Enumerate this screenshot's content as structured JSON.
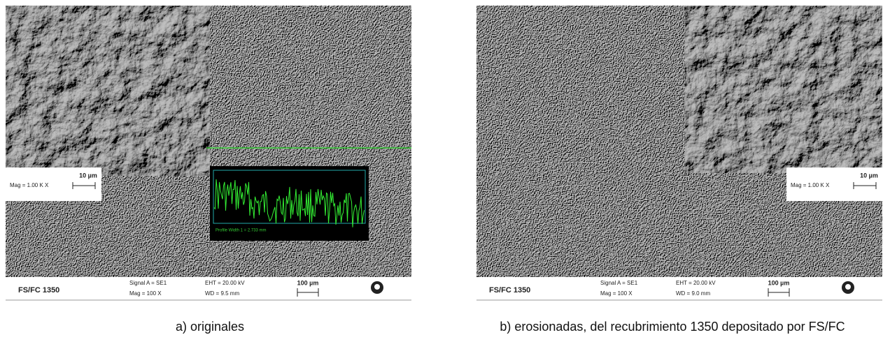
{
  "panels": [
    {
      "image": {
        "inset": {
          "scale": "10 µm",
          "mag": "Mag = 1.00 K X"
        },
        "profile_label": "Profile Width 1 = 2.733 mm",
        "info_bar": {
          "sample": "FS/FC 1350",
          "signal": "Signal A = SE1",
          "mag": "Mag = 100 X",
          "eht": "EHT = 20.00 kV",
          "wd": "WD = 9.5 mm",
          "scale": "100 µm"
        }
      },
      "caption": "a) originales"
    },
    {
      "image": {
        "inset": {
          "scale": "10 µm",
          "mag": "Mag = 1.00 K X"
        },
        "info_bar": {
          "sample": "FS/FC 1350",
          "signal": "Signal A = SE1",
          "mag": "Mag = 100 X",
          "eht": "EHT = 20.00 kV",
          "wd": "WD = 9.0 mm",
          "scale": "100 µm"
        }
      },
      "caption": "b) erosionadas, del recubrimiento 1350 depositado por FS/FC"
    }
  ]
}
